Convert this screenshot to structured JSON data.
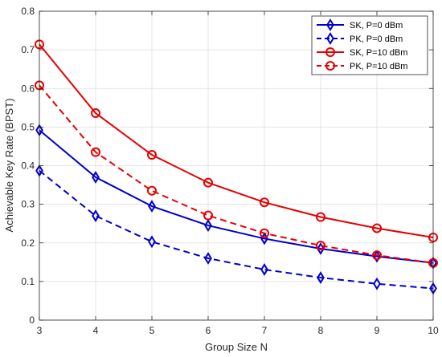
{
  "chart_data": {
    "type": "line",
    "title": "",
    "xlabel": "Group Size N",
    "ylabel": "Achievable Key Rate (BPST)",
    "x": [
      3,
      4,
      5,
      6,
      7,
      8,
      9,
      10
    ],
    "xlim": [
      3,
      10
    ],
    "ylim": [
      0,
      0.8
    ],
    "xticks": [
      "3",
      "4",
      "5",
      "6",
      "7",
      "8",
      "9",
      "10"
    ],
    "yticks": [
      "0",
      "0.1",
      "0.2",
      "0.3",
      "0.4",
      "0.5",
      "0.6",
      "0.7",
      "0.8"
    ],
    "grid": true,
    "legend_position": "top-right",
    "series": [
      {
        "name": "SK, P=0 dBm",
        "color": "#0000cc",
        "dash": "solid",
        "marker": "diamond",
        "values": [
          0.492,
          0.37,
          0.295,
          0.245,
          0.211,
          0.185,
          0.165,
          0.148
        ]
      },
      {
        "name": "PK, P=0 dBm",
        "color": "#0000cc",
        "dash": "dashed",
        "marker": "diamond",
        "values": [
          0.387,
          0.27,
          0.203,
          0.16,
          0.131,
          0.11,
          0.094,
          0.082
        ]
      },
      {
        "name": "SK, P=10 dBm",
        "color": "#e60000",
        "dash": "solid",
        "marker": "circle",
        "values": [
          0.714,
          0.536,
          0.428,
          0.356,
          0.305,
          0.267,
          0.238,
          0.214
        ]
      },
      {
        "name": "PK, P=10 dBm",
        "color": "#e60000",
        "dash": "dashed",
        "marker": "circle",
        "values": [
          0.608,
          0.435,
          0.335,
          0.271,
          0.225,
          0.193,
          0.168,
          0.148
        ]
      }
    ]
  }
}
